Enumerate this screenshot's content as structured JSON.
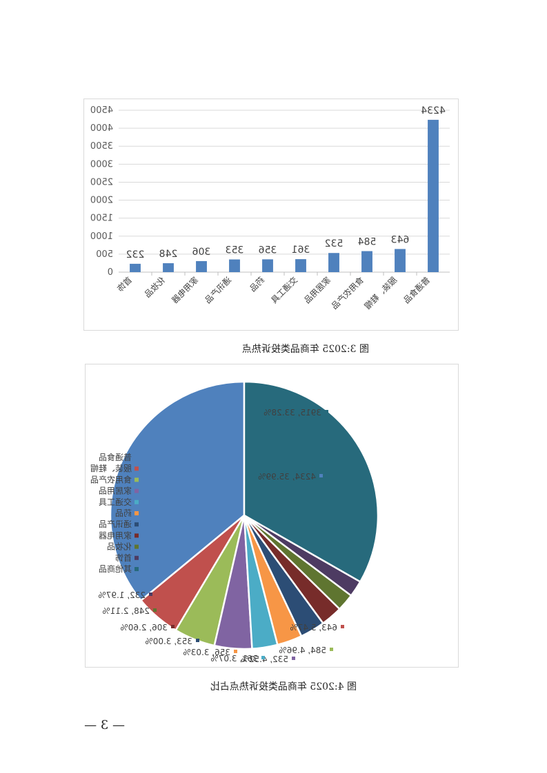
{
  "bar_chart_caption": "图 3:2025 年商品类投诉热点",
  "pie_chart_caption": "图 4:2025 年商品类投诉热点占比",
  "page_number": "— 3 —",
  "chart_data": [
    {
      "type": "bar",
      "categories": [
        "普通食品",
        "服装、鞋帽",
        "食用农产品",
        "家居用品",
        "交通工具",
        "药品",
        "通讯产品",
        "家用电器",
        "化妆品",
        "首饰"
      ],
      "values": [
        4234,
        643,
        584,
        532,
        361,
        356,
        353,
        306,
        248,
        232
      ],
      "ylim": [
        0,
        4500
      ],
      "yticks": [
        0,
        500,
        1000,
        1500,
        2000,
        2500,
        3000,
        3500,
        4000,
        4500
      ],
      "color": "#4f81bd",
      "grid": true,
      "mirrored": true
    },
    {
      "type": "pie",
      "labels": [
        "普通食品",
        "服装、鞋帽",
        "食用农产品",
        "家居用品",
        "交通工具",
        "药品",
        "通讯产品",
        "家用电器",
        "化妆品",
        "首饰",
        "其他商品"
      ],
      "values": [
        4234,
        643,
        584,
        532,
        361,
        356,
        353,
        306,
        248,
        232,
        3915
      ],
      "data_labels": [
        "4234, 35.99%",
        "643, 5.47%",
        "584, 4.96%",
        "532, 4.52%",
        "361, 3.07%",
        "356, 3.03%",
        "353, 3.00%",
        "306, 2.60%",
        "248, 2.11%",
        "232, 1.97%",
        "3915, 33.28%"
      ],
      "colors": [
        "#4f81bd",
        "#c0504d",
        "#9bbb59",
        "#8064a2",
        "#4bacc6",
        "#f79646",
        "#2c4d75",
        "#772c2a",
        "#5f7530",
        "#4d3b62",
        "#276a7c"
      ],
      "legend": "left",
      "mirrored": true
    }
  ]
}
